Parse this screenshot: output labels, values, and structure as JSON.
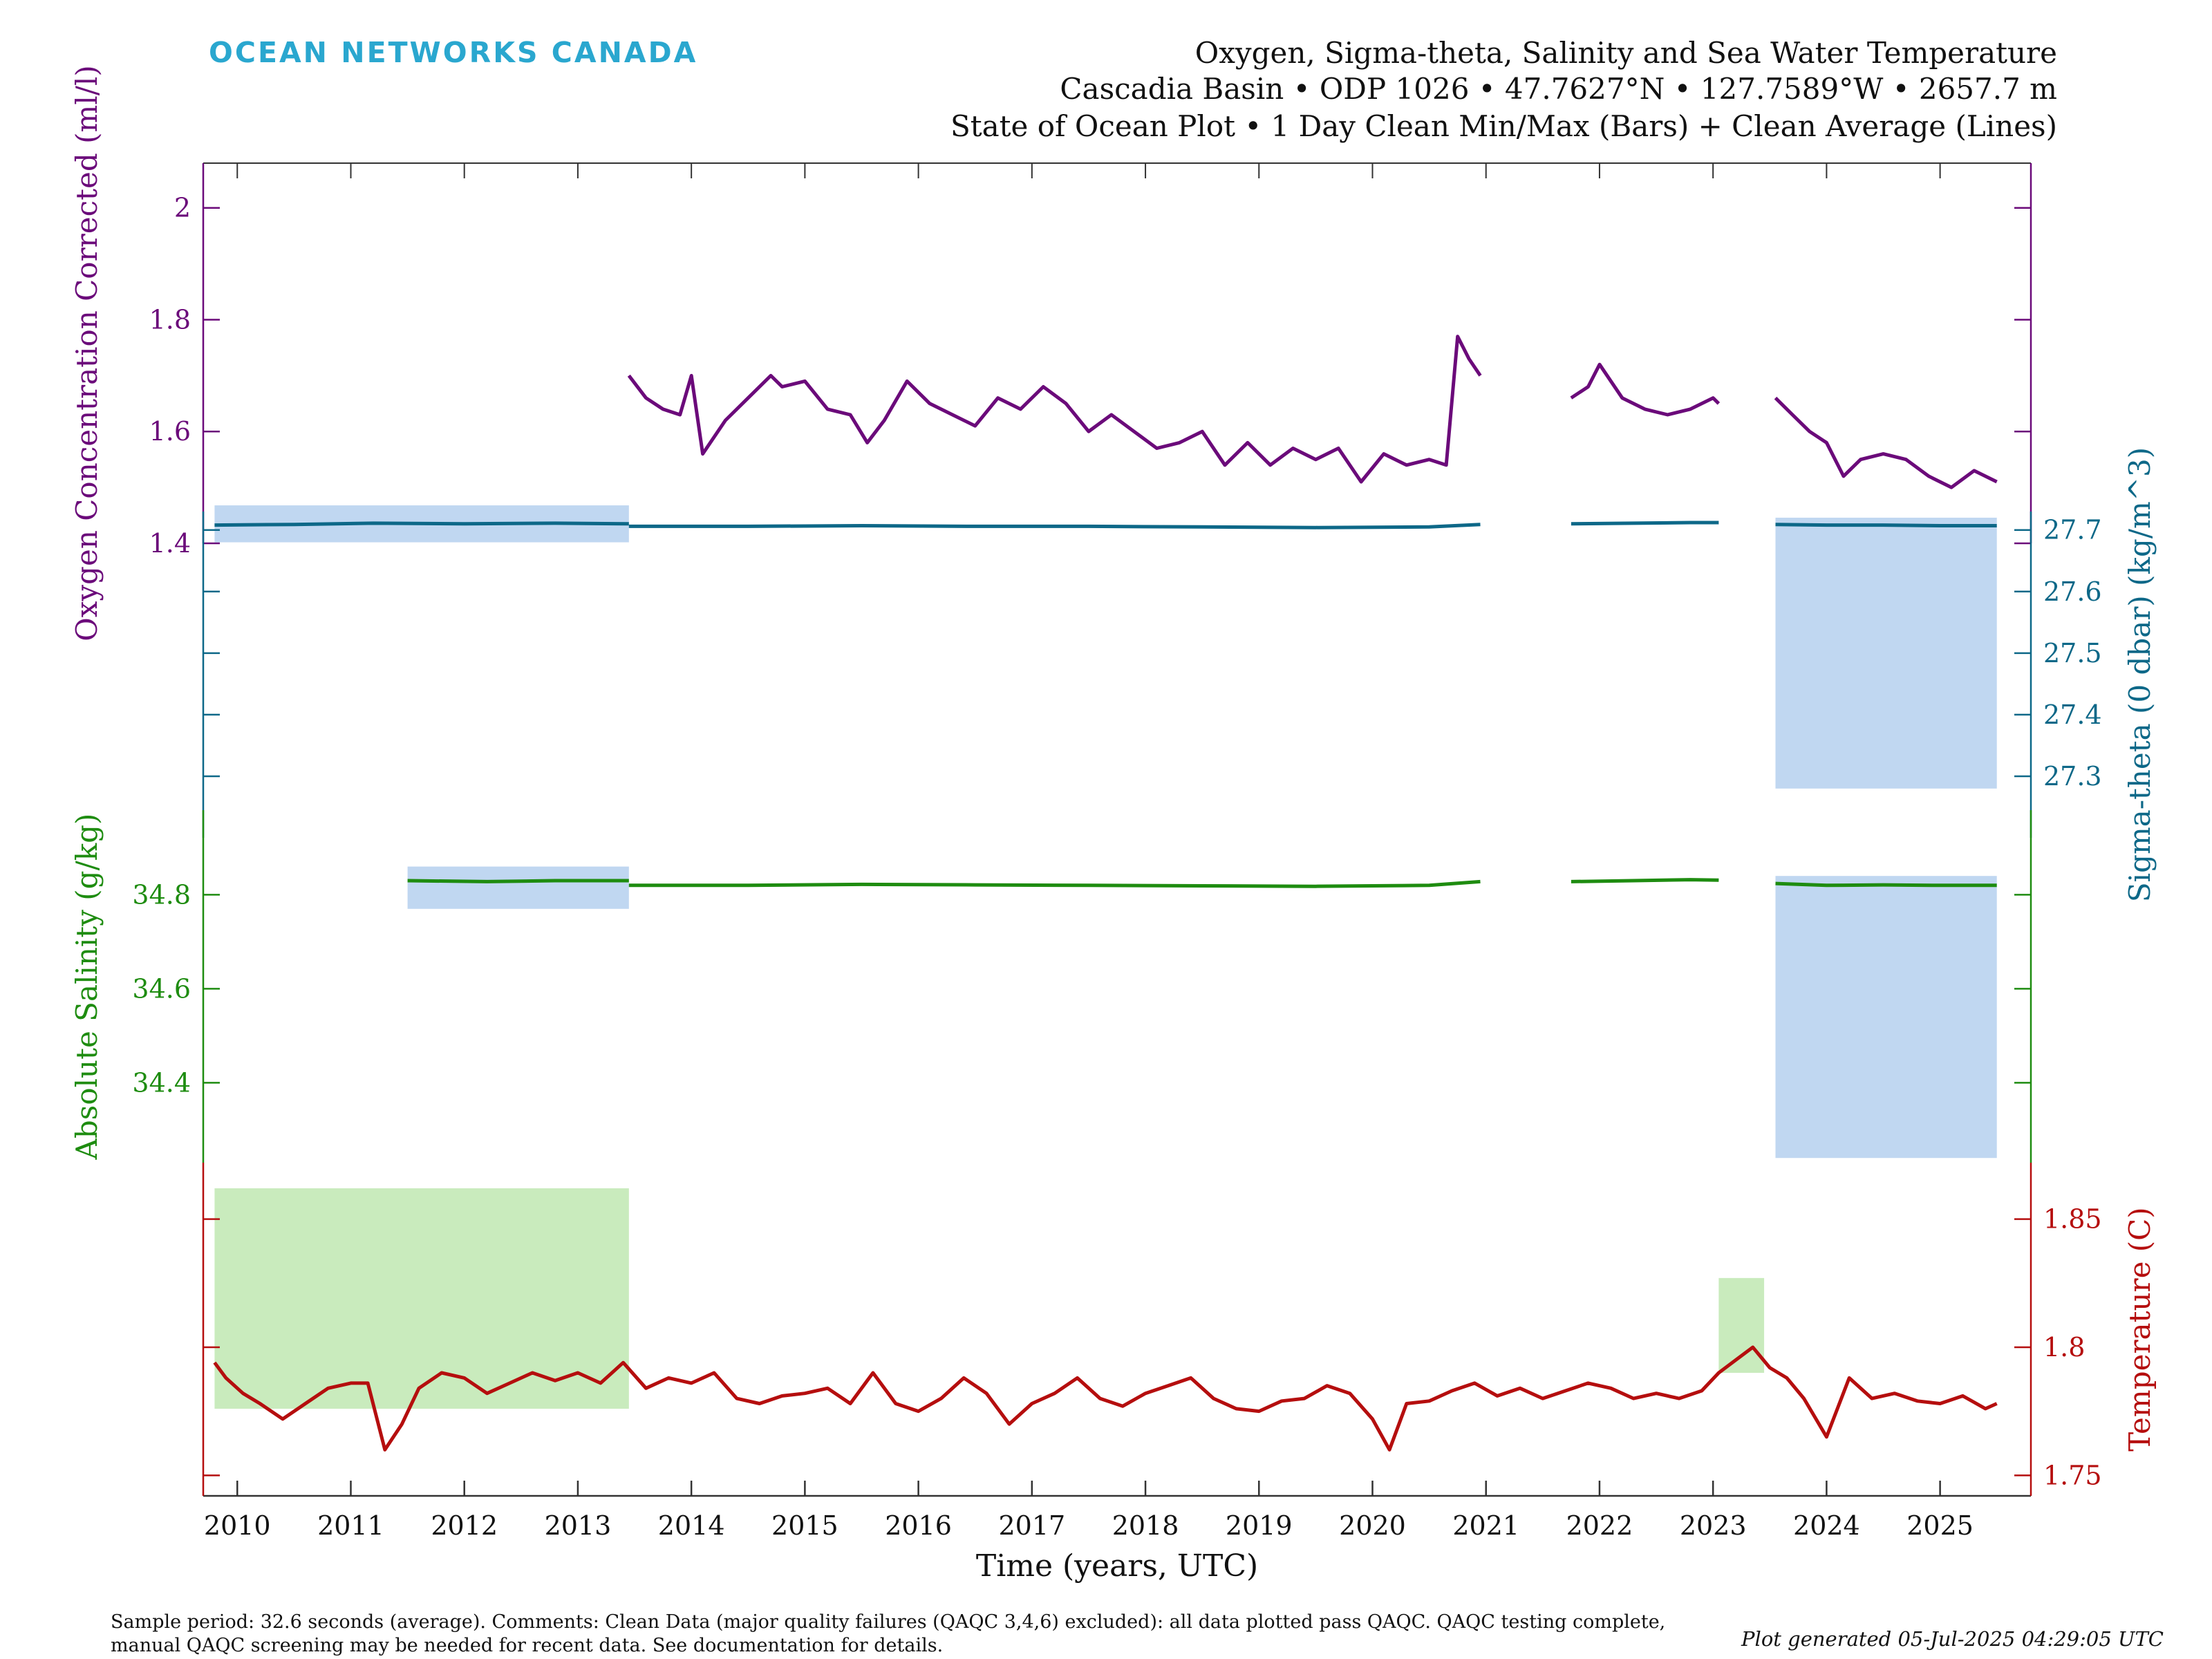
{
  "logo_text": "OCEAN NETWORKS CANADA",
  "title": {
    "line1": "Oxygen, Sigma-theta, Salinity and Sea Water Temperature",
    "line2": "Cascadia Basin • ODP 1026 • 47.7627°N • 127.7589°W • 2657.7 m",
    "line3": "State of Ocean Plot • 1 Day Clean Min/Max (Bars) + Clean Average (Lines)"
  },
  "footer": {
    "line1": "Sample period: 32.6 seconds (average). Comments: Clean Data (major quality failures (QAQC 3,4,6) excluded): all data plotted pass QAQC. QAQC testing complete,",
    "line2": "manual QAQC screening may be needed for recent data. See documentation for details.",
    "generated": "Plot generated 05-Jul-2025 04:29:05 UTC"
  },
  "colors": {
    "oxygen": "#6b0a7a",
    "sigma": "#0d6888",
    "salinity": "#1e8c10",
    "temperature": "#b50e0e",
    "minmax_blue": "#b5d0ef",
    "minmax_green": "#bfe8b2",
    "axis": "#333333"
  },
  "chart_data": {
    "type": "line",
    "x": {
      "label": "Time (years, UTC)",
      "range": [
        2009.7,
        2025.8
      ],
      "ticks": [
        2010,
        2011,
        2012,
        2013,
        2014,
        2015,
        2016,
        2017,
        2018,
        2019,
        2020,
        2021,
        2022,
        2023,
        2024,
        2025
      ],
      "tick_labels": [
        "2010",
        "2011",
        "2012",
        "2013",
        "2014",
        "2015",
        "2016",
        "2017",
        "2018",
        "2019",
        "2020",
        "2021",
        "2022",
        "2023",
        "2024",
        "2025"
      ]
    },
    "series": [
      {
        "name": "Oxygen Concentration Corrected",
        "axis_label": "Oxygen Concentration Corrected (ml/l)",
        "axis_side": "left",
        "ylim": [
          1.4,
          2.08
        ],
        "ticks": [
          1.4,
          1.6,
          1.8,
          2
        ],
        "tick_labels": [
          "1.4",
          "1.6",
          "1.8",
          "2"
        ],
        "segments": [
          {
            "x": [
              2013.45,
              2013.6,
              2013.75,
              2013.9,
              2014.0,
              2014.1,
              2014.3,
              2014.5,
              2014.7,
              2014.8,
              2015.0,
              2015.2,
              2015.4,
              2015.55,
              2015.7,
              2015.9,
              2016.1,
              2016.3,
              2016.5,
              2016.7,
              2016.9,
              2017.1,
              2017.3,
              2017.5,
              2017.7,
              2017.9,
              2018.1,
              2018.3,
              2018.5,
              2018.7,
              2018.9,
              2019.1,
              2019.3,
              2019.5,
              2019.7,
              2019.9,
              2020.1,
              2020.3,
              2020.5,
              2020.65,
              2020.75,
              2020.85,
              2020.95
            ],
            "y": [
              1.7,
              1.66,
              1.64,
              1.63,
              1.7,
              1.56,
              1.62,
              1.66,
              1.7,
              1.68,
              1.69,
              1.64,
              1.63,
              1.58,
              1.62,
              1.69,
              1.65,
              1.63,
              1.61,
              1.66,
              1.64,
              1.68,
              1.65,
              1.6,
              1.63,
              1.6,
              1.57,
              1.58,
              1.6,
              1.54,
              1.58,
              1.54,
              1.57,
              1.55,
              1.57,
              1.51,
              1.56,
              1.54,
              1.55,
              1.54,
              1.77,
              1.73,
              1.7
            ]
          },
          {
            "x": [
              2021.75,
              2021.9,
              2022.0,
              2022.2,
              2022.4,
              2022.6,
              2022.8,
              2023.0,
              2023.05
            ],
            "y": [
              1.66,
              1.68,
              1.72,
              1.66,
              1.64,
              1.63,
              1.64,
              1.66,
              1.65
            ]
          },
          {
            "x": [
              2023.55,
              2023.7,
              2023.85,
              2024.0,
              2024.15,
              2024.3,
              2024.5,
              2024.7,
              2024.9,
              2025.1,
              2025.3,
              2025.5
            ],
            "y": [
              1.66,
              1.63,
              1.6,
              1.58,
              1.52,
              1.55,
              1.56,
              1.55,
              1.52,
              1.5,
              1.53,
              1.51
            ]
          }
        ]
      },
      {
        "name": "Sigma-theta (0 dbar)",
        "axis_label": "Sigma-theta (0 dbar) (kg/m^3)",
        "axis_side": "right",
        "ylim": [
          27.2,
          27.73
        ],
        "ticks": [
          27.3,
          27.4,
          27.5,
          27.6,
          27.7
        ],
        "tick_labels": [
          "27.3",
          "27.4",
          "27.5",
          "27.6",
          "27.7"
        ],
        "segments": [
          {
            "x": [
              2009.8,
              2010.5,
              2011.2,
              2012.0,
              2012.8,
              2013.45
            ],
            "y": [
              27.708,
              27.709,
              27.711,
              27.71,
              27.711,
              27.71
            ]
          },
          {
            "x": [
              2013.45,
              2014.5,
              2015.5,
              2016.5,
              2017.5,
              2018.5,
              2019.5,
              2020.5,
              2020.95
            ],
            "y": [
              27.706,
              27.706,
              27.707,
              27.706,
              27.706,
              27.705,
              27.704,
              27.705,
              27.709
            ]
          },
          {
            "x": [
              2021.75,
              2022.3,
              2022.8,
              2023.05
            ],
            "y": [
              27.71,
              27.711,
              27.712,
              27.712
            ]
          },
          {
            "x": [
              2023.55,
              2024.0,
              2024.5,
              2025.0,
              2025.5
            ],
            "y": [
              27.709,
              27.708,
              27.708,
              27.707,
              27.707
            ]
          }
        ]
      },
      {
        "name": "Absolute Salinity",
        "axis_label": "Absolute Salinity (g/kg)",
        "axis_side": "left",
        "ylim": [
          34.23,
          34.98
        ],
        "ticks": [
          34.4,
          34.6,
          34.8
        ],
        "tick_labels": [
          "34.4",
          "34.6",
          "34.8"
        ],
        "segments": [
          {
            "x": [
              2011.5,
              2012.2,
              2012.8,
              2013.45
            ],
            "y": [
              34.83,
              34.828,
              34.83,
              34.83
            ]
          },
          {
            "x": [
              2013.45,
              2014.5,
              2015.5,
              2016.5,
              2017.5,
              2018.5,
              2019.5,
              2020.5,
              2020.95
            ],
            "y": [
              34.82,
              34.82,
              34.822,
              34.821,
              34.82,
              34.819,
              34.818,
              34.82,
              34.828
            ]
          },
          {
            "x": [
              2021.75,
              2022.3,
              2022.8,
              2023.05
            ],
            "y": [
              34.828,
              34.83,
              34.832,
              34.831
            ]
          },
          {
            "x": [
              2023.55,
              2024.0,
              2024.5,
              2025.0,
              2025.5
            ],
            "y": [
              34.824,
              34.82,
              34.821,
              34.82,
              34.82
            ]
          }
        ]
      },
      {
        "name": "Temperature",
        "axis_label": "Temperature (C)",
        "axis_side": "right",
        "ylim": [
          1.742,
          1.872
        ],
        "ticks": [
          1.75,
          1.8,
          1.85
        ],
        "tick_labels": [
          "1.75",
          "1.8",
          "1.85"
        ],
        "segments": [
          {
            "x": [
              2009.8,
              2009.9,
              2010.05,
              2010.2,
              2010.4,
              2010.6,
              2010.8,
              2011.0,
              2011.15,
              2011.3,
              2011.45,
              2011.6,
              2011.8,
              2012.0,
              2012.2,
              2012.4,
              2012.6,
              2012.8,
              2013.0,
              2013.2,
              2013.4,
              2013.6,
              2013.8,
              2014.0,
              2014.2,
              2014.4,
              2014.6,
              2014.8,
              2015.0,
              2015.2,
              2015.4,
              2015.6,
              2015.8,
              2016.0,
              2016.2,
              2016.4,
              2016.6,
              2016.8,
              2017.0,
              2017.2,
              2017.4,
              2017.6,
              2017.8,
              2018.0,
              2018.2,
              2018.4,
              2018.6,
              2018.8,
              2019.0,
              2019.2,
              2019.4,
              2019.6,
              2019.8,
              2020.0,
              2020.15,
              2020.3,
              2020.5,
              2020.7,
              2020.9,
              2021.1,
              2021.3,
              2021.5,
              2021.7,
              2021.9,
              2022.1,
              2022.3,
              2022.5,
              2022.7,
              2022.9,
              2023.05,
              2023.2,
              2023.35,
              2023.5,
              2023.65,
              2023.8,
              2024.0,
              2024.2,
              2024.4,
              2024.6,
              2024.8,
              2025.0,
              2025.2,
              2025.4,
              2025.5
            ],
            "y": [
              1.794,
              1.788,
              1.782,
              1.778,
              1.772,
              1.778,
              1.784,
              1.786,
              1.786,
              1.76,
              1.77,
              1.784,
              1.79,
              1.788,
              1.782,
              1.786,
              1.79,
              1.787,
              1.79,
              1.786,
              1.794,
              1.784,
              1.788,
              1.786,
              1.79,
              1.78,
              1.778,
              1.781,
              1.782,
              1.784,
              1.778,
              1.79,
              1.778,
              1.775,
              1.78,
              1.788,
              1.782,
              1.77,
              1.778,
              1.782,
              1.788,
              1.78,
              1.777,
              1.782,
              1.785,
              1.788,
              1.78,
              1.776,
              1.775,
              1.779,
              1.78,
              1.785,
              1.782,
              1.772,
              1.76,
              1.778,
              1.779,
              1.783,
              1.786,
              1.781,
              1.784,
              1.78,
              1.783,
              1.786,
              1.784,
              1.78,
              1.782,
              1.78,
              1.783,
              1.79,
              1.795,
              1.8,
              1.792,
              1.788,
              1.78,
              1.765,
              1.788,
              1.78,
              1.782,
              1.779,
              1.778,
              1.781,
              1.776,
              1.778
            ]
          }
        ]
      }
    ],
    "minmax_bars": [
      {
        "series": "Sigma-theta (0 dbar)",
        "x_range": [
          2009.8,
          2013.45
        ],
        "ymin": 27.68,
        "ymax": 27.74
      },
      {
        "series": "Sigma-theta (0 dbar)",
        "x_range": [
          2023.55,
          2025.5
        ],
        "ymin": 27.28,
        "ymax": 27.72
      },
      {
        "series": "Absolute Salinity",
        "x_range": [
          2011.5,
          2013.45
        ],
        "ymin": 34.77,
        "ymax": 34.86
      },
      {
        "series": "Absolute Salinity",
        "x_range": [
          2023.55,
          2025.5
        ],
        "ymin": 34.24,
        "ymax": 34.84
      },
      {
        "series": "Temperature",
        "x_range": [
          2009.8,
          2013.45
        ],
        "ymin": 1.776,
        "ymax": 1.862
      },
      {
        "series": "Temperature",
        "x_range": [
          2023.05,
          2023.45
        ],
        "ymin": 1.79,
        "ymax": 1.827
      }
    ]
  }
}
